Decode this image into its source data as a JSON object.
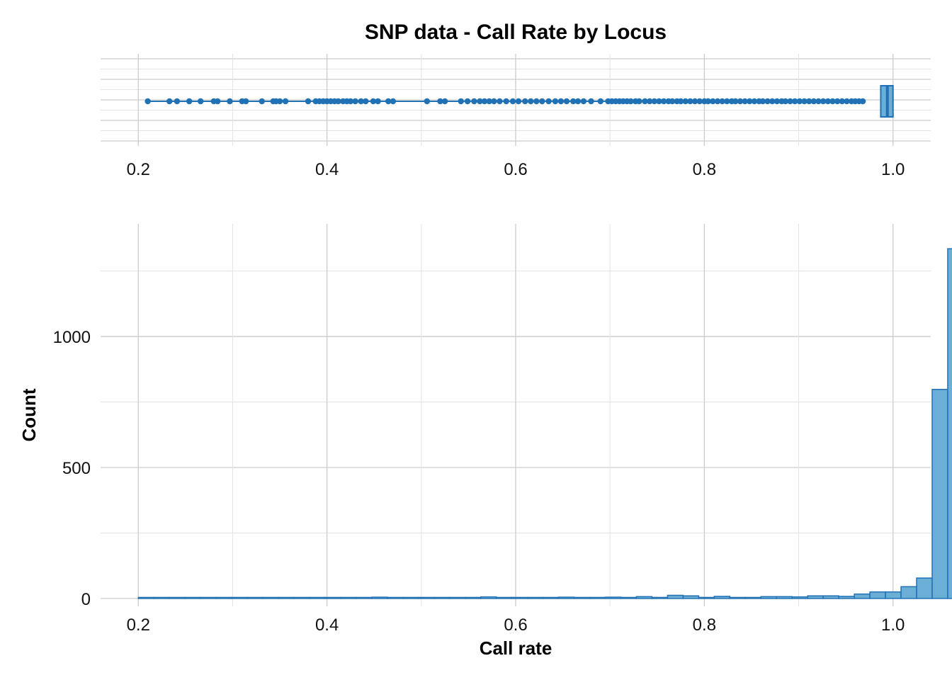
{
  "chart_data": [
    {
      "type": "boxplot",
      "title": "SNP data - Call Rate by Locus",
      "x_ticks": [
        "0.2",
        "0.4",
        "0.6",
        "0.8",
        "1.0"
      ],
      "xlim": [
        0.16,
        1.04
      ],
      "box": {
        "q1": 0.987,
        "median": 0.994,
        "q3": 1.0,
        "whisker_low": 0.968,
        "whisker_high": 1.0
      },
      "outliers": [
        0.21,
        0.233,
        0.241,
        0.254,
        0.266,
        0.28,
        0.284,
        0.297,
        0.31,
        0.314,
        0.331,
        0.343,
        0.346,
        0.35,
        0.356,
        0.38,
        0.388,
        0.392,
        0.396,
        0.4,
        0.404,
        0.408,
        0.412,
        0.417,
        0.421,
        0.425,
        0.43,
        0.436,
        0.441,
        0.449,
        0.454,
        0.465,
        0.47,
        0.506,
        0.52,
        0.525,
        0.542,
        0.549,
        0.556,
        0.562,
        0.567,
        0.572,
        0.577,
        0.583,
        0.59,
        0.597,
        0.603,
        0.61,
        0.616,
        0.622,
        0.628,
        0.635,
        0.642,
        0.648,
        0.654,
        0.661,
        0.666,
        0.672,
        0.68,
        0.69,
        0.698,
        0.702,
        0.706,
        0.71,
        0.714,
        0.718,
        0.722,
        0.727,
        0.731,
        0.737,
        0.742,
        0.747,
        0.752,
        0.757,
        0.762,
        0.766,
        0.771,
        0.775,
        0.78,
        0.785,
        0.79,
        0.795,
        0.8,
        0.804,
        0.809,
        0.814,
        0.819,
        0.824,
        0.829,
        0.833,
        0.838,
        0.843,
        0.848,
        0.853,
        0.858,
        0.862,
        0.867,
        0.872,
        0.877,
        0.882,
        0.886,
        0.891,
        0.896,
        0.901,
        0.906,
        0.911,
        0.916,
        0.921,
        0.926,
        0.931,
        0.936,
        0.941,
        0.946,
        0.951,
        0.956,
        0.96,
        0.964,
        0.968
      ]
    },
    {
      "type": "bar",
      "xlabel": "Call rate",
      "ylabel": "Count",
      "x_ticks": [
        "0.2",
        "0.4",
        "0.6",
        "0.8",
        "1.0"
      ],
      "y_ticks": [
        "0",
        "500",
        "1000"
      ],
      "xlim": [
        0.16,
        1.04
      ],
      "ylim": [
        -30,
        1430
      ],
      "bin_width": 0.0165,
      "bin_start": 0.2,
      "values": [
        1,
        1,
        2,
        3,
        1,
        0,
        1,
        1,
        1,
        0,
        2,
        3,
        1,
        1,
        4,
        5,
        3,
        3,
        3,
        1,
        1,
        1,
        6,
        1,
        3,
        4,
        2,
        5,
        3,
        3,
        5,
        2,
        7,
        1,
        12,
        10,
        4,
        8,
        2,
        3,
        7,
        7,
        6,
        10,
        10,
        8,
        17,
        25,
        25,
        45,
        78,
        798,
        1335
      ],
      "colors": {
        "fill": "#6baed6",
        "stroke": "#2171b5",
        "points": "#2171b5"
      }
    }
  ]
}
